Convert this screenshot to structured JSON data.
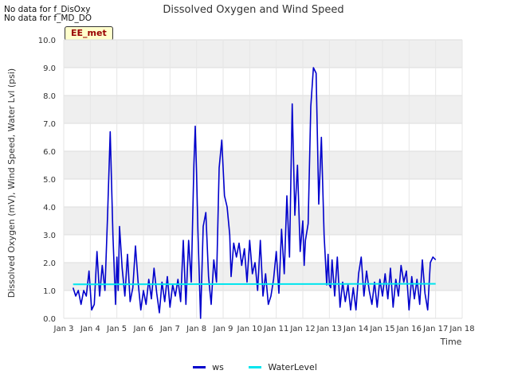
{
  "notes": [
    "No data for f_DisOxy",
    "No data for f_MD_DO"
  ],
  "badge": "EE_met",
  "chart_data": {
    "type": "line",
    "title": "Dissolved Oxygen and Wind Speed",
    "xlabel": "Time",
    "ylabel": "Dissolved Oxygen (mV), Wind Speed, Water Lvl (psi)",
    "xlim": [
      3,
      18
    ],
    "ylim": [
      0,
      10
    ],
    "x_ticks": [
      3,
      4,
      5,
      6,
      7,
      8,
      9,
      10,
      11,
      12,
      13,
      14,
      15,
      16,
      17,
      18
    ],
    "x_tick_labels": [
      "Jan 3",
      "Jan 4",
      "Jan 5",
      "Jan 6",
      "Jan 7",
      "Jan 8",
      "Jan 9",
      "Jan 10",
      "Jan 11",
      "Jan 12",
      "Jan 13",
      "Jan 14",
      "Jan 15",
      "Jan 16",
      "Jan 17",
      "Jan 18"
    ],
    "y_ticks": [
      0,
      1,
      2,
      3,
      4,
      5,
      6,
      7,
      8,
      9,
      10
    ],
    "y_tick_labels": [
      "0.0",
      "1.0",
      "2.0",
      "3.0",
      "4.0",
      "5.0",
      "6.0",
      "7.0",
      "8.0",
      "9.0",
      "10.0"
    ],
    "grid": true,
    "legend_position": "bottom",
    "series": [
      {
        "name": "ws",
        "color": "#0000cc",
        "x": [
          3.35,
          3.45,
          3.55,
          3.65,
          3.75,
          3.85,
          3.95,
          4.05,
          4.15,
          4.25,
          4.35,
          4.45,
          4.55,
          4.65,
          4.75,
          4.85,
          4.95,
          5.0,
          5.05,
          5.1,
          5.2,
          5.3,
          5.4,
          5.5,
          5.6,
          5.7,
          5.8,
          5.9,
          6.0,
          6.1,
          6.2,
          6.3,
          6.4,
          6.5,
          6.6,
          6.7,
          6.8,
          6.9,
          7.0,
          7.1,
          7.2,
          7.3,
          7.4,
          7.5,
          7.6,
          7.7,
          7.8,
          7.9,
          7.95,
          8.0,
          8.05,
          8.15,
          8.25,
          8.35,
          8.45,
          8.55,
          8.65,
          8.75,
          8.85,
          8.95,
          9.05,
          9.15,
          9.25,
          9.3,
          9.4,
          9.5,
          9.6,
          9.7,
          9.8,
          9.9,
          10.0,
          10.1,
          10.2,
          10.3,
          10.4,
          10.5,
          10.6,
          10.7,
          10.8,
          10.9,
          11.0,
          11.1,
          11.2,
          11.3,
          11.4,
          11.5,
          11.6,
          11.7,
          11.8,
          11.9,
          12.0,
          12.05,
          12.1,
          12.2,
          12.3,
          12.4,
          12.5,
          12.6,
          12.7,
          12.8,
          12.9,
          12.95,
          13.0,
          13.05,
          13.1,
          13.2,
          13.3,
          13.4,
          13.5,
          13.6,
          13.7,
          13.8,
          13.9,
          14.0,
          14.1,
          14.2,
          14.3,
          14.4,
          14.5,
          14.6,
          14.7,
          14.8,
          14.9,
          15.0,
          15.1,
          15.2,
          15.3,
          15.4,
          15.5,
          15.6,
          15.7,
          15.8,
          15.9,
          16.0,
          16.1,
          16.2,
          16.3,
          16.4,
          16.5,
          16.6,
          16.7,
          16.8,
          16.9,
          17.0
        ],
        "values": [
          1.1,
          0.8,
          1.0,
          0.5,
          1.0,
          0.8,
          1.7,
          0.3,
          0.5,
          2.4,
          0.8,
          1.9,
          1.0,
          3.7,
          6.7,
          3.0,
          0.5,
          2.2,
          1.0,
          3.3,
          1.8,
          0.8,
          2.3,
          0.6,
          1.1,
          2.6,
          1.3,
          0.3,
          1.0,
          0.5,
          1.4,
          0.7,
          1.8,
          0.9,
          0.2,
          1.3,
          0.6,
          1.5,
          0.4,
          1.2,
          0.8,
          1.4,
          0.6,
          2.8,
          0.5,
          2.8,
          1.3,
          5.5,
          6.9,
          5.2,
          3.2,
          0.0,
          3.3,
          3.8,
          1.5,
          0.5,
          2.1,
          1.3,
          5.4,
          6.4,
          4.4,
          4.0,
          3.0,
          1.5,
          2.7,
          2.2,
          2.7,
          1.9,
          2.5,
          1.3,
          2.8,
          1.6,
          2.0,
          1.0,
          2.8,
          0.8,
          1.6,
          0.5,
          0.8,
          1.4,
          2.4,
          0.9,
          3.2,
          1.6,
          4.4,
          2.2,
          7.7,
          3.7,
          5.5,
          2.4,
          3.5,
          1.9,
          2.8,
          3.4,
          7.6,
          9.0,
          8.8,
          4.1,
          6.5,
          3.0,
          1.2,
          2.3,
          1.2,
          1.1,
          2.1,
          0.8,
          2.2,
          0.4,
          1.3,
          0.6,
          1.2,
          0.3,
          1.1,
          0.3,
          1.6,
          2.2,
          0.8,
          1.7,
          1.0,
          0.5,
          1.3,
          0.4,
          1.4,
          0.8,
          1.6,
          0.7,
          1.8,
          0.4,
          1.4,
          0.8,
          1.9,
          1.3,
          1.7,
          0.3,
          1.5,
          0.7,
          1.4,
          0.5,
          2.1,
          0.9,
          0.3,
          2.0,
          2.2,
          2.1
        ]
      },
      {
        "name": "WaterLevel",
        "color": "#00e5ee",
        "x": [
          3.35,
          17.0
        ],
        "values": [
          1.22,
          1.24
        ]
      }
    ]
  }
}
